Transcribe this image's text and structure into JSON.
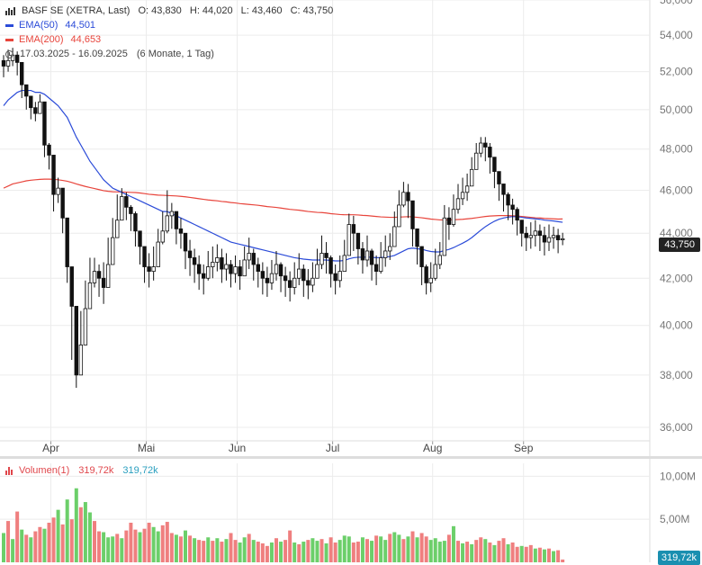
{
  "legend": {
    "instrument": "BASF SE (XETRA, Last)",
    "open": "O: 43,830",
    "high": "H: 44,020",
    "low": "L: 43,460",
    "close": "C: 43,750",
    "ema50_name": "EMA(50)",
    "ema50_value": "44,501",
    "ema200_name": "EMA(200)",
    "ema200_value": "44,653",
    "range": "17.03.2025 - 16.09.2025",
    "range_note": "(6 Monate, 1 Tag)",
    "volume_name": "Volumen(1)",
    "volume_value_a": "319,72k",
    "volume_value_b": "319,72k"
  },
  "last_price_label": "43,750",
  "last_volume_label": "319,72k",
  "colors": {
    "ema50": "#2b4bd8",
    "ema200": "#e8453c",
    "up_volume": "#6ccf6a",
    "down_volume": "#ef7f7f",
    "candle": "#111111",
    "grid": "#ececec",
    "volume_value_b": "#2a9fbf"
  },
  "chart_data": {
    "type": "candlestick",
    "price_axis": {
      "ticks": [
        36000,
        38000,
        40000,
        42000,
        44000,
        46000,
        48000,
        50000,
        52000,
        54000,
        56000
      ],
      "tick_labels": [
        "36,000",
        "38,000",
        "40,000",
        "42,000",
        "44,000",
        "46,000",
        "48,000",
        "50,000",
        "52,000",
        "54,000",
        "56,000"
      ],
      "ylim": [
        35500,
        56000
      ],
      "scale": "log"
    },
    "x_axis": {
      "month_labels": [
        "Apr",
        "Mai",
        "Jun",
        "Jul",
        "Aug",
        "Sep"
      ],
      "month_positions": [
        10,
        31,
        51,
        72,
        94,
        114
      ]
    },
    "close_series": [
      52.3,
      52.6,
      52.9,
      52.5,
      51.3,
      50.7,
      50.1,
      49.8,
      50.4,
      48.2,
      47.7,
      45.8,
      46.1,
      44.7,
      42.5,
      40.8,
      38.0,
      39.2,
      40.7,
      41.8,
      42.3,
      42.0,
      41.6,
      42.6,
      43.8,
      44.6,
      45.7,
      45.2,
      44.9,
      44.1,
      43.4,
      42.5,
      42.3,
      42.5,
      43.6,
      44.1,
      44.8,
      45.0,
      44.2,
      44.0,
      43.2,
      42.9,
      42.6,
      42.2,
      42.0,
      42.5,
      42.7,
      42.9,
      42.4,
      42.6,
      42.2,
      42.5,
      42.1,
      42.8,
      43.1,
      42.6,
      42.3,
      42.0,
      41.8,
      42.2,
      42.6,
      42.1,
      41.9,
      41.6,
      42.0,
      42.4,
      41.9,
      41.7,
      42.0,
      42.6,
      43.1,
      42.9,
      42.2,
      41.9,
      42.3,
      43.0,
      44.4,
      44.0,
      43.3,
      42.8,
      43.2,
      42.6,
      42.3,
      42.9,
      43.2,
      43.4,
      44.3,
      45.3,
      45.9,
      45.5,
      44.2,
      43.4,
      42.5,
      41.8,
      42.0,
      42.6,
      43.0,
      44.7,
      44.4,
      45.1,
      45.6,
      45.9,
      46.2,
      47.0,
      47.8,
      48.3,
      48.1,
      47.6,
      46.9,
      46.3,
      45.8,
      45.3,
      45.1,
      44.6,
      44.0,
      43.8,
      43.9,
      44.1,
      43.9,
      43.6,
      43.8,
      43.9,
      43.7,
      43.75
    ],
    "high_series": [
      52.9,
      53.2,
      53.3,
      53.1,
      52.4,
      51.2,
      50.6,
      50.4,
      50.8,
      49.2,
      48.3,
      46.7,
      46.6,
      45.6,
      43.9,
      42.5,
      39.9,
      40.6,
      41.9,
      42.9,
      42.9,
      42.6,
      42.7,
      43.8,
      44.7,
      45.8,
      46.1,
      45.9,
      45.3,
      45.0,
      43.9,
      43.2,
      43.1,
      43.4,
      44.2,
      45.0,
      46.0,
      45.4,
      44.7,
      44.7,
      43.8,
      43.7,
      43.3,
      43.0,
      42.6,
      43.2,
      43.4,
      43.5,
      43.3,
      43.1,
      42.8,
      43.0,
      42.8,
      43.4,
      43.8,
      43.3,
      42.9,
      42.7,
      42.5,
      42.8,
      43.2,
      42.7,
      42.5,
      42.3,
      42.7,
      43.1,
      42.6,
      42.4,
      42.7,
      43.3,
      43.9,
      43.6,
      43.0,
      42.6,
      43.0,
      43.7,
      44.9,
      44.8,
      43.9,
      43.6,
      43.9,
      43.3,
      43.0,
      43.6,
      43.9,
      44.0,
      45.0,
      46.0,
      46.4,
      46.3,
      45.1,
      44.1,
      43.3,
      42.6,
      42.7,
      43.3,
      43.6,
      45.3,
      45.2,
      45.8,
      46.3,
      46.6,
      46.8,
      47.6,
      48.3,
      48.6,
      48.6,
      48.3,
      47.5,
      46.9,
      46.3,
      45.9,
      45.6,
      45.2,
      44.6,
      44.3,
      44.5,
      44.6,
      44.4,
      44.3,
      44.4,
      44.3,
      44.2,
      44.02
    ],
    "low_series": [
      51.7,
      52.0,
      52.3,
      51.8,
      50.6,
      50.0,
      49.5,
      49.4,
      49.8,
      47.6,
      47.0,
      45.0,
      45.4,
      44.0,
      41.8,
      38.6,
      37.5,
      38.4,
      39.9,
      41.0,
      41.6,
      41.2,
      40.9,
      41.9,
      43.1,
      43.9,
      44.9,
      44.6,
      44.1,
      43.4,
      42.6,
      41.8,
      41.6,
      41.9,
      42.9,
      43.5,
      44.0,
      44.2,
      43.5,
      43.3,
      42.4,
      42.1,
      41.8,
      41.5,
      41.3,
      41.9,
      42.0,
      42.3,
      41.8,
      41.9,
      41.6,
      41.8,
      41.5,
      42.1,
      42.4,
      41.9,
      41.6,
      41.3,
      41.2,
      41.5,
      41.9,
      41.4,
      41.2,
      41.0,
      41.3,
      41.7,
      41.2,
      41.1,
      41.4,
      42.0,
      42.4,
      42.2,
      41.6,
      41.3,
      41.6,
      42.3,
      43.6,
      43.2,
      42.6,
      42.2,
      42.5,
      41.9,
      41.7,
      42.2,
      42.5,
      42.8,
      43.5,
      44.6,
      45.2,
      44.7,
      43.4,
      42.6,
      41.7,
      41.3,
      41.4,
      41.9,
      42.4,
      43.9,
      43.7,
      44.3,
      44.9,
      45.3,
      45.5,
      46.3,
      47.2,
      47.6,
      47.4,
      46.8,
      46.1,
      45.5,
      45.0,
      44.6,
      44.4,
      43.9,
      43.4,
      43.2,
      43.3,
      43.4,
      43.2,
      43.0,
      43.2,
      43.3,
      43.1,
      43.46
    ],
    "ema50": [
      50.2,
      50.5,
      50.7,
      50.9,
      51.0,
      51.0,
      51.0,
      50.9,
      50.9,
      50.8,
      50.6,
      50.4,
      50.2,
      49.9,
      49.6,
      49.1,
      48.6,
      48.2,
      47.8,
      47.4,
      47.1,
      46.8,
      46.5,
      46.3,
      46.1,
      46.0,
      45.9,
      45.8,
      45.7,
      45.6,
      45.5,
      45.4,
      45.3,
      45.2,
      45.1,
      45.0,
      45.0,
      44.9,
      44.8,
      44.7,
      44.6,
      44.5,
      44.4,
      44.3,
      44.2,
      44.1,
      44.0,
      43.9,
      43.8,
      43.7,
      43.6,
      43.55,
      43.5,
      43.45,
      43.4,
      43.35,
      43.3,
      43.25,
      43.2,
      43.15,
      43.1,
      43.05,
      43.0,
      42.95,
      42.9,
      42.87,
      42.84,
      42.82,
      42.8,
      42.8,
      42.8,
      42.8,
      42.78,
      42.76,
      42.76,
      42.78,
      42.85,
      42.9,
      42.92,
      42.92,
      42.93,
      42.92,
      42.9,
      42.91,
      42.93,
      42.95,
      43.0,
      43.1,
      43.2,
      43.3,
      43.33,
      43.3,
      43.28,
      43.22,
      43.18,
      43.16,
      43.16,
      43.22,
      43.27,
      43.35,
      43.45,
      43.55,
      43.66,
      43.8,
      43.97,
      44.14,
      44.3,
      44.43,
      44.55,
      44.64,
      44.7,
      44.74,
      44.76,
      44.76,
      44.73,
      44.7,
      44.68,
      44.66,
      44.64,
      44.6,
      44.58,
      44.56,
      44.53,
      44.501
    ],
    "ema200": [
      46.1,
      46.2,
      46.3,
      46.35,
      46.4,
      46.45,
      46.48,
      46.5,
      46.52,
      46.53,
      46.53,
      46.52,
      46.5,
      46.47,
      46.43,
      46.37,
      46.3,
      46.24,
      46.18,
      46.13,
      46.08,
      46.03,
      45.98,
      45.95,
      45.93,
      45.92,
      45.92,
      45.91,
      45.9,
      45.89,
      45.87,
      45.84,
      45.81,
      45.79,
      45.77,
      45.76,
      45.75,
      45.74,
      45.73,
      45.71,
      45.69,
      45.66,
      45.63,
      45.6,
      45.57,
      45.54,
      45.52,
      45.5,
      45.47,
      45.45,
      45.42,
      45.4,
      45.37,
      45.35,
      45.33,
      45.31,
      45.29,
      45.26,
      45.23,
      45.21,
      45.19,
      45.16,
      45.13,
      45.1,
      45.08,
      45.06,
      45.03,
      45.0,
      44.98,
      44.96,
      44.95,
      44.93,
      44.9,
      44.88,
      44.86,
      44.85,
      44.85,
      44.85,
      44.84,
      44.82,
      44.81,
      44.79,
      44.77,
      44.75,
      44.74,
      44.73,
      44.73,
      44.74,
      44.75,
      44.76,
      44.75,
      44.73,
      44.71,
      44.68,
      44.65,
      44.63,
      44.61,
      44.61,
      44.61,
      44.62,
      44.63,
      44.64,
      44.66,
      44.68,
      44.71,
      44.74,
      44.77,
      44.79,
      44.8,
      44.81,
      44.81,
      44.81,
      44.8,
      44.79,
      44.77,
      44.75,
      44.73,
      44.71,
      44.7,
      44.68,
      44.67,
      44.66,
      44.65,
      44.653
    ],
    "volume_axis": {
      "ticks": [
        5000000,
        10000000
      ],
      "tick_labels": [
        "5,00M",
        "10,00M"
      ]
    },
    "volume_series": [
      3.4,
      4.8,
      2.7,
      5.9,
      3.8,
      3.2,
      2.9,
      3.6,
      4.1,
      3.9,
      4.6,
      5.2,
      6.1,
      4.4,
      7.3,
      5.0,
      8.6,
      6.4,
      7.0,
      5.8,
      4.8,
      3.6,
      3.5,
      2.9,
      3.0,
      3.3,
      2.8,
      3.7,
      4.6,
      3.8,
      3.5,
      3.9,
      4.6,
      4.1,
      3.6,
      4.3,
      4.7,
      3.4,
      3.2,
      3.0,
      3.7,
      3.1,
      2.8,
      2.6,
      2.5,
      2.9,
      2.5,
      2.8,
      2.4,
      2.7,
      3.4,
      2.6,
      2.3,
      2.9,
      3.3,
      2.6,
      2.4,
      2.2,
      1.9,
      2.3,
      2.8,
      2.4,
      2.6,
      3.7,
      2.3,
      2.1,
      2.4,
      2.6,
      2.8,
      2.5,
      2.7,
      2.2,
      2.9,
      2.3,
      2.6,
      3.1,
      3.0,
      2.3,
      2.4,
      2.9,
      2.7,
      2.5,
      3.1,
      3.0,
      2.6,
      3.3,
      3.5,
      3.2,
      2.7,
      3.0,
      3.6,
      2.9,
      3.4,
      3.0,
      2.6,
      2.8,
      2.4,
      2.5,
      3.2,
      4.2,
      2.5,
      2.2,
      2.4,
      2.1,
      2.6,
      2.9,
      2.7,
      2.3,
      2.0,
      2.5,
      2.8,
      2.1,
      2.3,
      1.8,
      1.9,
      1.8,
      2.0,
      1.6,
      1.7,
      1.5,
      1.6,
      1.3,
      1.4,
      0.32
    ],
    "volume_up": [
      1,
      0,
      1,
      0,
      1,
      0,
      1,
      0,
      0,
      1,
      0,
      0,
      1,
      0,
      1,
      0,
      1,
      0,
      1,
      1,
      0,
      0,
      1,
      1,
      1,
      0,
      1,
      0,
      0,
      0,
      1,
      0,
      0,
      1,
      1,
      0,
      0,
      0,
      1,
      0,
      1,
      0,
      1,
      0,
      0,
      1,
      0,
      1,
      0,
      1,
      0,
      0,
      1,
      1,
      0,
      1,
      0,
      0,
      0,
      1,
      0,
      1,
      0,
      0,
      1,
      0,
      1,
      0,
      1,
      1,
      0,
      1,
      0,
      0,
      1,
      1,
      1,
      0,
      0,
      1,
      0,
      1,
      0,
      1,
      1,
      0,
      1,
      1,
      0,
      1,
      0,
      1,
      0,
      0,
      1,
      1,
      1,
      1,
      0,
      1,
      0,
      1,
      0,
      1,
      0,
      0,
      1,
      0,
      1,
      0,
      0,
      1,
      0,
      0,
      1,
      0,
      0,
      1,
      0,
      1,
      0,
      1,
      0,
      0
    ]
  }
}
